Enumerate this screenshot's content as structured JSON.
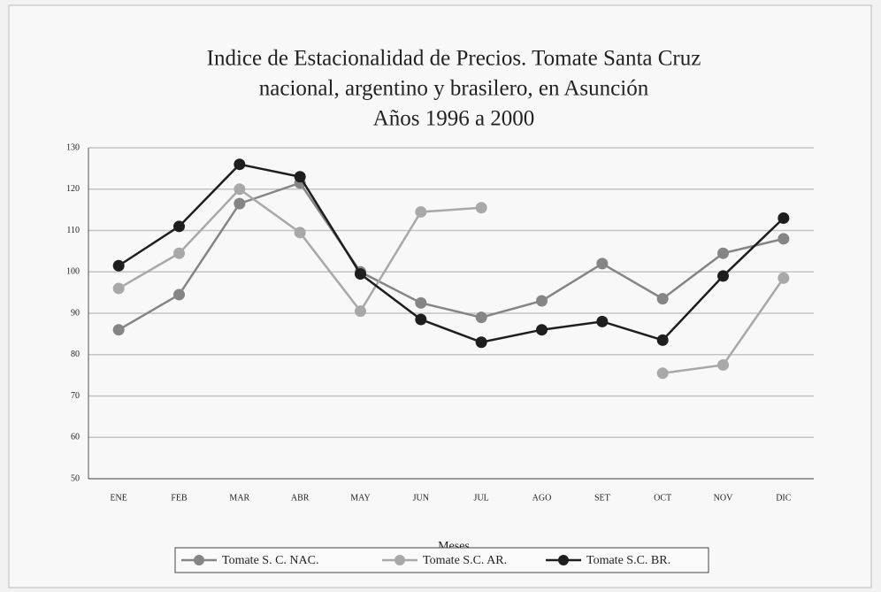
{
  "chart_data": {
    "type": "line",
    "title": [
      "Indice de Estacionalidad de Precios. Tomate Santa Cruz",
      "nacional, argentino y brasilero, en Asunción",
      "Años 1996 a 2000"
    ],
    "x_label": "Meses",
    "categories": [
      "ENE",
      "FEB",
      "MAR",
      "ABR",
      "MAY",
      "JUN",
      "JUL",
      "AGO",
      "SET",
      "OCT",
      "NOV",
      "DIC"
    ],
    "series": [
      {
        "name": "Tomate S. C. NAC.",
        "color": "#858585",
        "values": [
          86,
          94.5,
          116.5,
          121.5,
          100,
          92.5,
          89,
          93,
          102,
          93.5,
          104.5,
          108
        ]
      },
      {
        "name": "Tomate S.C. AR.",
        "color": "#a8a8a8",
        "values": [
          96,
          104.5,
          120,
          109.5,
          90.5,
          114.5,
          115.5,
          null,
          null,
          75.5,
          77.5,
          98.5
        ]
      },
      {
        "name": "Tomate S.C. BR.",
        "color": "#1e1e1e",
        "values": [
          101.5,
          111,
          126,
          123,
          99.5,
          88.5,
          83,
          86,
          88,
          83.5,
          99,
          113
        ]
      }
    ],
    "ylim": [
      50,
      130
    ],
    "yticks": [
      50,
      60,
      70,
      80,
      90,
      100,
      110,
      120,
      130
    ],
    "grid": true
  }
}
